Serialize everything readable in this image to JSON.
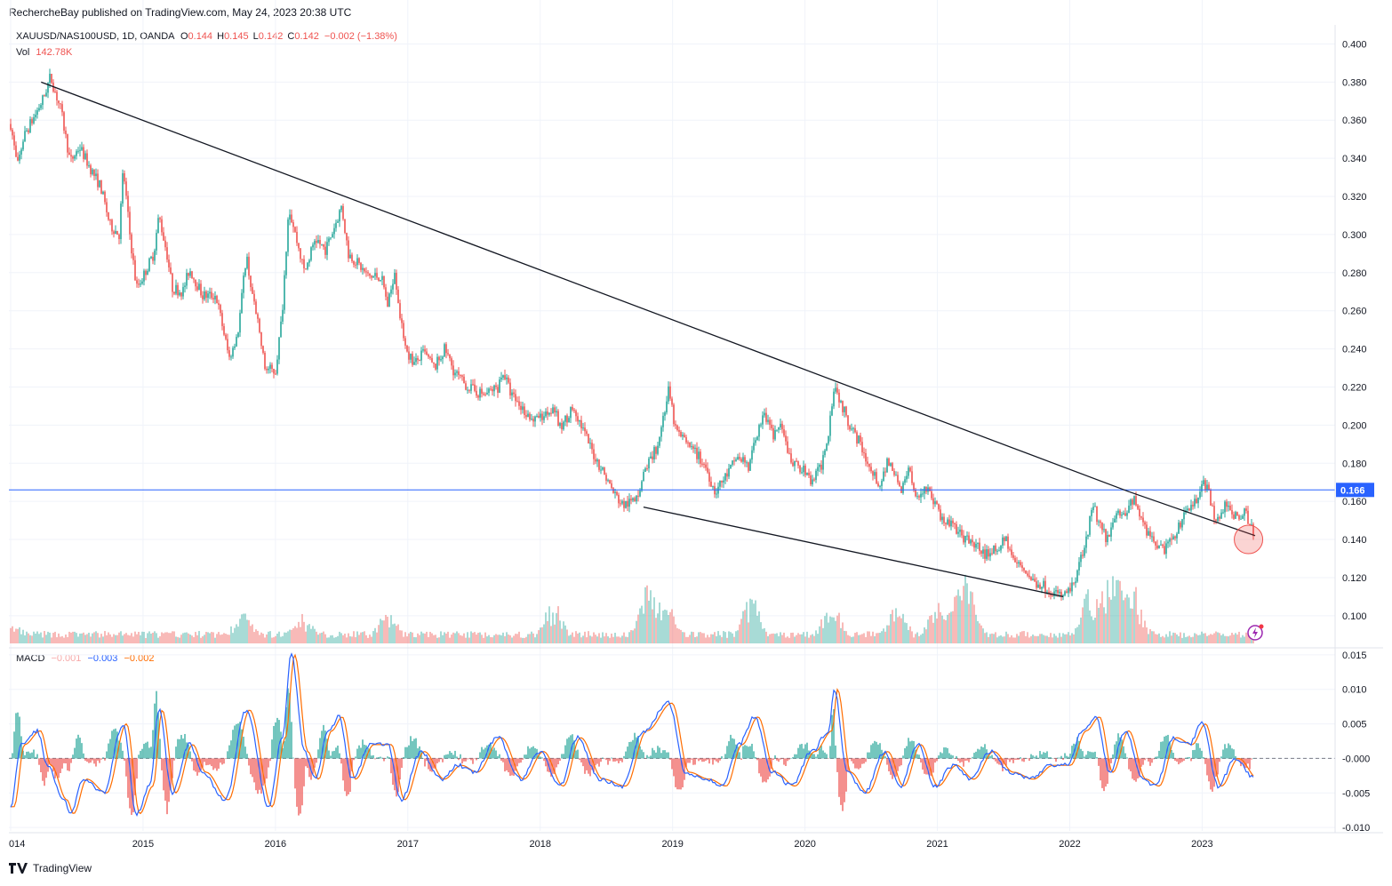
{
  "header": {
    "publisher": "RechercheBay published on TradingView.com, May 24, 2023 20:38 UTC"
  },
  "legend": {
    "symbol": "XAUUSD/NAS100USD, 1D, OANDA",
    "open_label": "O",
    "open": "0.144",
    "high_label": "H",
    "high": "0.145",
    "low_label": "L",
    "low": "0.142",
    "close_label": "C",
    "close": "0.142",
    "change": "−0.002 (−1.38%)",
    "vol_label": "Vol",
    "vol": "142.78K",
    "macd_label": "MACD",
    "macd_hist": "−0.001",
    "macd_line": "−0.003",
    "macd_signal": "−0.002"
  },
  "colors": {
    "up": "#26a69a",
    "down": "#ef5350",
    "hline": "#2962ff",
    "macd_line": "#2962ff",
    "signal_line": "#ff6d00",
    "grid": "#f0f3fa"
  },
  "footer": {
    "brand": "TradingView"
  },
  "icons": {
    "logo": "tradingview-logo-icon",
    "flash": "lightning-icon"
  },
  "chart_data": [
    {
      "type": "line",
      "subtype": "candlestick-approximation",
      "symbol": "XAUUSD/NAS100USD",
      "x_ticks": [
        "014",
        "2015",
        "2016",
        "2017",
        "2018",
        "2019",
        "2020",
        "2021",
        "2022",
        "2023"
      ],
      "y_ticks": [
        "0.100",
        "0.120",
        "0.140",
        "0.160",
        "0.180",
        "0.200",
        "0.220",
        "0.240",
        "0.260",
        "0.280",
        "0.300",
        "0.320",
        "0.340",
        "0.360",
        "0.380",
        "0.400"
      ],
      "ylim": [
        0.085,
        0.41
      ],
      "x_start": 2014.0,
      "x_end": 2023.4,
      "price_points": [
        [
          2014.0,
          0.358
        ],
        [
          2014.05,
          0.335
        ],
        [
          2014.1,
          0.352
        ],
        [
          2014.18,
          0.362
        ],
        [
          2014.25,
          0.372
        ],
        [
          2014.3,
          0.383
        ],
        [
          2014.38,
          0.365
        ],
        [
          2014.45,
          0.338
        ],
        [
          2014.52,
          0.346
        ],
        [
          2014.6,
          0.335
        ],
        [
          2014.68,
          0.325
        ],
        [
          2014.75,
          0.305
        ],
        [
          2014.82,
          0.3
        ],
        [
          2014.85,
          0.335
        ],
        [
          2014.9,
          0.3
        ],
        [
          2014.95,
          0.272
        ],
        [
          2015.0,
          0.278
        ],
        [
          2015.08,
          0.29
        ],
        [
          2015.12,
          0.31
        ],
        [
          2015.18,
          0.29
        ],
        [
          2015.22,
          0.272
        ],
        [
          2015.3,
          0.27
        ],
        [
          2015.35,
          0.282
        ],
        [
          2015.45,
          0.268
        ],
        [
          2015.55,
          0.268
        ],
        [
          2015.6,
          0.252
        ],
        [
          2015.65,
          0.235
        ],
        [
          2015.72,
          0.25
        ],
        [
          2015.78,
          0.29
        ],
        [
          2015.82,
          0.27
        ],
        [
          2015.88,
          0.248
        ],
        [
          2015.92,
          0.23
        ],
        [
          2016.0,
          0.228
        ],
        [
          2016.05,
          0.258
        ],
        [
          2016.1,
          0.315
        ],
        [
          2016.15,
          0.3
        ],
        [
          2016.22,
          0.28
        ],
        [
          2016.3,
          0.298
        ],
        [
          2016.38,
          0.292
        ],
        [
          2016.45,
          0.305
        ],
        [
          2016.5,
          0.315
        ],
        [
          2016.55,
          0.29
        ],
        [
          2016.62,
          0.285
        ],
        [
          2016.7,
          0.278
        ],
        [
          2016.8,
          0.278
        ],
        [
          2016.85,
          0.262
        ],
        [
          2016.9,
          0.282
        ],
        [
          2016.95,
          0.252
        ],
        [
          2017.0,
          0.238
        ],
        [
          2017.05,
          0.232
        ],
        [
          2017.12,
          0.238
        ],
        [
          2017.2,
          0.23
        ],
        [
          2017.28,
          0.24
        ],
        [
          2017.35,
          0.228
        ],
        [
          2017.42,
          0.222
        ],
        [
          2017.5,
          0.218
        ],
        [
          2017.58,
          0.216
        ],
        [
          2017.68,
          0.22
        ],
        [
          2017.72,
          0.228
        ],
        [
          2017.78,
          0.216
        ],
        [
          2017.85,
          0.21
        ],
        [
          2017.95,
          0.202
        ],
        [
          2018.02,
          0.205
        ],
        [
          2018.1,
          0.21
        ],
        [
          2018.15,
          0.198
        ],
        [
          2018.25,
          0.21
        ],
        [
          2018.32,
          0.198
        ],
        [
          2018.4,
          0.185
        ],
        [
          2018.48,
          0.175
        ],
        [
          2018.55,
          0.165
        ],
        [
          2018.62,
          0.158
        ],
        [
          2018.72,
          0.16
        ],
        [
          2018.8,
          0.178
        ],
        [
          2018.88,
          0.188
        ],
        [
          2018.97,
          0.218
        ],
        [
          2019.02,
          0.198
        ],
        [
          2019.1,
          0.19
        ],
        [
          2019.18,
          0.185
        ],
        [
          2019.25,
          0.178
        ],
        [
          2019.32,
          0.165
        ],
        [
          2019.42,
          0.175
        ],
        [
          2019.5,
          0.185
        ],
        [
          2019.58,
          0.178
        ],
        [
          2019.65,
          0.2
        ],
        [
          2019.7,
          0.205
        ],
        [
          2019.75,
          0.195
        ],
        [
          2019.82,
          0.198
        ],
        [
          2019.9,
          0.18
        ],
        [
          2019.97,
          0.178
        ],
        [
          2020.05,
          0.17
        ],
        [
          2020.12,
          0.178
        ],
        [
          2020.18,
          0.198
        ],
        [
          2020.22,
          0.222
        ],
        [
          2020.28,
          0.21
        ],
        [
          2020.35,
          0.198
        ],
        [
          2020.42,
          0.19
        ],
        [
          2020.5,
          0.175
        ],
        [
          2020.58,
          0.168
        ],
        [
          2020.62,
          0.182
        ],
        [
          2020.68,
          0.175
        ],
        [
          2020.72,
          0.165
        ],
        [
          2020.78,
          0.178
        ],
        [
          2020.85,
          0.162
        ],
        [
          2020.92,
          0.168
        ],
        [
          2021.0,
          0.155
        ],
        [
          2021.05,
          0.15
        ],
        [
          2021.12,
          0.148
        ],
        [
          2021.2,
          0.14
        ],
        [
          2021.28,
          0.138
        ],
        [
          2021.35,
          0.132
        ],
        [
          2021.45,
          0.135
        ],
        [
          2021.52,
          0.14
        ],
        [
          2021.58,
          0.128
        ],
        [
          2021.65,
          0.125
        ],
        [
          2021.72,
          0.118
        ],
        [
          2021.8,
          0.116
        ],
        [
          2021.88,
          0.112
        ],
        [
          2021.95,
          0.11
        ],
        [
          2022.02,
          0.115
        ],
        [
          2022.08,
          0.13
        ],
        [
          2022.12,
          0.14
        ],
        [
          2022.18,
          0.158
        ],
        [
          2022.22,
          0.148
        ],
        [
          2022.28,
          0.14
        ],
        [
          2022.35,
          0.155
        ],
        [
          2022.42,
          0.15
        ],
        [
          2022.48,
          0.162
        ],
        [
          2022.52,
          0.155
        ],
        [
          2022.58,
          0.145
        ],
        [
          2022.65,
          0.138
        ],
        [
          2022.72,
          0.135
        ],
        [
          2022.78,
          0.14
        ],
        [
          2022.85,
          0.15
        ],
        [
          2022.9,
          0.158
        ],
        [
          2022.95,
          0.16
        ],
        [
          2023.0,
          0.17
        ],
        [
          2023.05,
          0.165
        ],
        [
          2023.1,
          0.148
        ],
        [
          2023.18,
          0.158
        ],
        [
          2023.25,
          0.152
        ],
        [
          2023.32,
          0.155
        ],
        [
          2023.4,
          0.142
        ]
      ],
      "horizontal_line": {
        "value": 0.166,
        "label": "0.166"
      },
      "trendlines": [
        {
          "from": [
            2014.23,
            0.38
          ],
          "to": [
            2022.45,
            0.165
          ]
        },
        {
          "from": [
            2018.78,
            0.157
          ],
          "to": [
            2021.95,
            0.11
          ]
        },
        {
          "from": [
            2022.45,
            0.165
          ],
          "to": [
            2023.4,
            0.142
          ]
        }
      ],
      "marker": {
        "at": [
          2023.35,
          0.14
        ],
        "shape": "circle"
      },
      "volume_spikes": [
        [
          2014.0,
          0.15
        ],
        [
          2015.75,
          0.35
        ],
        [
          2016.2,
          0.3
        ],
        [
          2016.85,
          0.4
        ],
        [
          2018.1,
          0.55
        ],
        [
          2018.8,
          0.85
        ],
        [
          2018.95,
          0.6
        ],
        [
          2019.6,
          0.75
        ],
        [
          2020.2,
          0.6
        ],
        [
          2020.7,
          0.5
        ],
        [
          2021.0,
          0.7
        ],
        [
          2021.18,
          0.85
        ],
        [
          2021.25,
          0.45
        ],
        [
          2022.15,
          0.8
        ],
        [
          2022.3,
          0.95
        ],
        [
          2022.4,
          0.85
        ],
        [
          2022.5,
          0.6
        ]
      ]
    },
    {
      "type": "line",
      "name": "MACD",
      "y_ticks": [
        "-0.010",
        "-0.005",
        "-0.000",
        "0.005",
        "0.010",
        "0.015"
      ],
      "ylim": [
        -0.0105,
        0.0155
      ],
      "macd_points": [
        [
          2014.0,
          -0.007
        ],
        [
          2014.08,
          0.002
        ],
        [
          2014.2,
          0.004
        ],
        [
          2014.28,
          -0.001
        ],
        [
          2014.4,
          -0.006
        ],
        [
          2014.45,
          -0.008
        ],
        [
          2014.55,
          -0.003
        ],
        [
          2014.7,
          -0.005
        ],
        [
          2014.85,
          0.005
        ],
        [
          2014.95,
          -0.008
        ],
        [
          2015.05,
          -0.004
        ],
        [
          2015.12,
          0.007
        ],
        [
          2015.22,
          -0.005
        ],
        [
          2015.35,
          0.002
        ],
        [
          2015.45,
          -0.002
        ],
        [
          2015.62,
          -0.006
        ],
        [
          2015.78,
          0.007
        ],
        [
          2015.95,
          -0.007
        ],
        [
          2016.05,
          0.003
        ],
        [
          2016.12,
          0.015
        ],
        [
          2016.22,
          0.001
        ],
        [
          2016.3,
          -0.003
        ],
        [
          2016.4,
          0.004
        ],
        [
          2016.48,
          0.006
        ],
        [
          2016.58,
          -0.003
        ],
        [
          2016.72,
          0.002
        ],
        [
          2016.85,
          0.002
        ],
        [
          2016.95,
          -0.006
        ],
        [
          2017.1,
          0.001
        ],
        [
          2017.25,
          -0.003
        ],
        [
          2017.38,
          -0.001
        ],
        [
          2017.5,
          -0.002
        ],
        [
          2017.68,
          0.003
        ],
        [
          2017.85,
          -0.003
        ],
        [
          2018.0,
          0.001
        ],
        [
          2018.15,
          -0.004
        ],
        [
          2018.28,
          0.003
        ],
        [
          2018.45,
          -0.003
        ],
        [
          2018.62,
          -0.004
        ],
        [
          2018.78,
          0.004
        ],
        [
          2018.97,
          0.008
        ],
        [
          2019.1,
          -0.002
        ],
        [
          2019.25,
          -0.003
        ],
        [
          2019.38,
          -0.004
        ],
        [
          2019.5,
          0.002
        ],
        [
          2019.62,
          0.006
        ],
        [
          2019.75,
          -0.002
        ],
        [
          2019.9,
          -0.004
        ],
        [
          2020.05,
          0.001
        ],
        [
          2020.18,
          0.004
        ],
        [
          2020.22,
          0.01
        ],
        [
          2020.32,
          -0.002
        ],
        [
          2020.45,
          -0.005
        ],
        [
          2020.6,
          0.001
        ],
        [
          2020.72,
          -0.004
        ],
        [
          2020.85,
          0.002
        ],
        [
          2020.98,
          -0.004
        ],
        [
          2021.12,
          -0.001
        ],
        [
          2021.25,
          -0.003
        ],
        [
          2021.4,
          0.001
        ],
        [
          2021.55,
          -0.002
        ],
        [
          2021.7,
          -0.003
        ],
        [
          2021.85,
          -0.001
        ],
        [
          2021.98,
          -0.001
        ],
        [
          2022.1,
          0.004
        ],
        [
          2022.2,
          0.006
        ],
        [
          2022.3,
          -0.002
        ],
        [
          2022.42,
          0.004
        ],
        [
          2022.55,
          -0.003
        ],
        [
          2022.65,
          -0.004
        ],
        [
          2022.78,
          0.003
        ],
        [
          2022.9,
          0.002
        ],
        [
          2023.0,
          0.005
        ],
        [
          2023.12,
          -0.004
        ],
        [
          2023.25,
          0.0
        ],
        [
          2023.4,
          -0.003
        ]
      ]
    }
  ]
}
